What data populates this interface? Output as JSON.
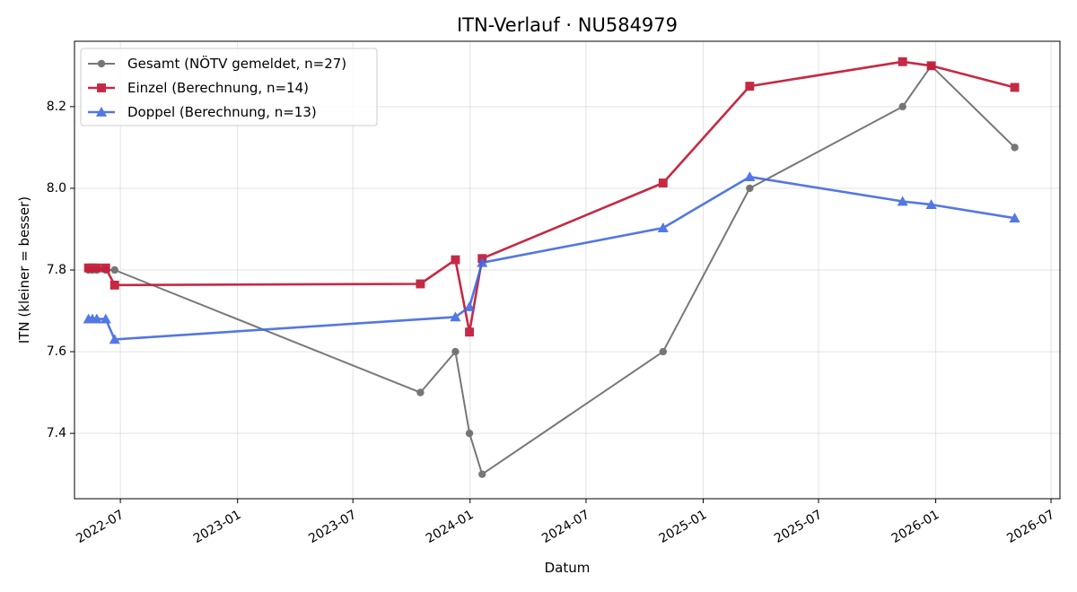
{
  "chart_data": {
    "type": "line",
    "title": "ITN-Verlauf · NU584979",
    "xlabel": "Datum",
    "ylabel": "ITN  (kleiner = besser)",
    "x_type": "date",
    "xlim": [
      "2022-04-20",
      "2026-07-15"
    ],
    "ylim": [
      7.24,
      8.36
    ],
    "x_ticks": [
      "2022-07-01",
      "2023-01-01",
      "2023-07-01",
      "2024-01-01",
      "2024-07-01",
      "2025-01-01",
      "2025-07-01",
      "2026-01-01",
      "2026-07-01"
    ],
    "x_tick_labels": [
      "2022-07",
      "2023-01",
      "2023-07",
      "2024-01",
      "2024-07",
      "2025-01",
      "2025-07",
      "2026-01",
      "2026-07"
    ],
    "y_ticks": [
      7.4,
      7.6,
      7.8,
      8.0,
      8.2
    ],
    "y_tick_labels": [
      "7.4",
      "7.6",
      "7.8",
      "8.0",
      "8.2"
    ],
    "grid": true,
    "legend_position": "top-left",
    "series": [
      {
        "name": "Gesamt (NÖTV gemeldet, n=27)",
        "color": "#444444",
        "marker": "circle",
        "points": [
          {
            "x": "2022-05-12",
            "y": 7.8
          },
          {
            "x": "2022-05-18",
            "y": 7.8
          },
          {
            "x": "2022-05-25",
            "y": 7.8
          },
          {
            "x": "2022-06-08",
            "y": 7.8
          },
          {
            "x": "2022-06-22",
            "y": 7.8
          },
          {
            "x": "2023-10-15",
            "y": 7.5
          },
          {
            "x": "2023-12-09",
            "y": 7.6
          },
          {
            "x": "2023-12-31",
            "y": 7.4
          },
          {
            "x": "2024-01-20",
            "y": 7.3
          },
          {
            "x": "2024-10-30",
            "y": 7.6
          },
          {
            "x": "2025-03-15",
            "y": 8.0
          },
          {
            "x": "2025-11-10",
            "y": 8.2
          },
          {
            "x": "2025-12-25",
            "y": 8.3
          },
          {
            "x": "2026-05-05",
            "y": 8.1
          }
        ]
      },
      {
        "name": "Einzel (Berechnung, n=14)",
        "color": "#c41e3a",
        "marker": "square",
        "points": [
          {
            "x": "2022-05-12",
            "y": 7.805
          },
          {
            "x": "2022-05-18",
            "y": 7.805
          },
          {
            "x": "2022-05-25",
            "y": 7.805
          },
          {
            "x": "2022-06-08",
            "y": 7.805
          },
          {
            "x": "2022-06-22",
            "y": 7.763
          },
          {
            "x": "2023-10-15",
            "y": 7.766
          },
          {
            "x": "2023-12-09",
            "y": 7.825
          },
          {
            "x": "2023-12-31",
            "y": 7.648
          },
          {
            "x": "2024-01-20",
            "y": 7.828
          },
          {
            "x": "2024-10-30",
            "y": 8.013
          },
          {
            "x": "2025-03-15",
            "y": 8.25
          },
          {
            "x": "2025-11-10",
            "y": 8.31
          },
          {
            "x": "2025-12-25",
            "y": 8.3
          },
          {
            "x": "2026-05-05",
            "y": 8.247
          }
        ]
      },
      {
        "name": "Doppel (Berechnung, n=13)",
        "color": "#4169e1",
        "marker": "triangle",
        "points": [
          {
            "x": "2022-05-12",
            "y": 7.68
          },
          {
            "x": "2022-05-18",
            "y": 7.68
          },
          {
            "x": "2022-05-25",
            "y": 7.68
          },
          {
            "x": "2022-06-08",
            "y": 7.68
          },
          {
            "x": "2022-06-22",
            "y": 7.63
          },
          {
            "x": "2023-12-09",
            "y": 7.685
          },
          {
            "x": "2023-12-31",
            "y": 7.71
          },
          {
            "x": "2024-01-20",
            "y": 7.818
          },
          {
            "x": "2024-10-30",
            "y": 7.903
          },
          {
            "x": "2025-03-15",
            "y": 8.028
          },
          {
            "x": "2025-11-10",
            "y": 7.968
          },
          {
            "x": "2025-12-25",
            "y": 7.96
          },
          {
            "x": "2026-05-05",
            "y": 7.927
          }
        ]
      }
    ]
  }
}
